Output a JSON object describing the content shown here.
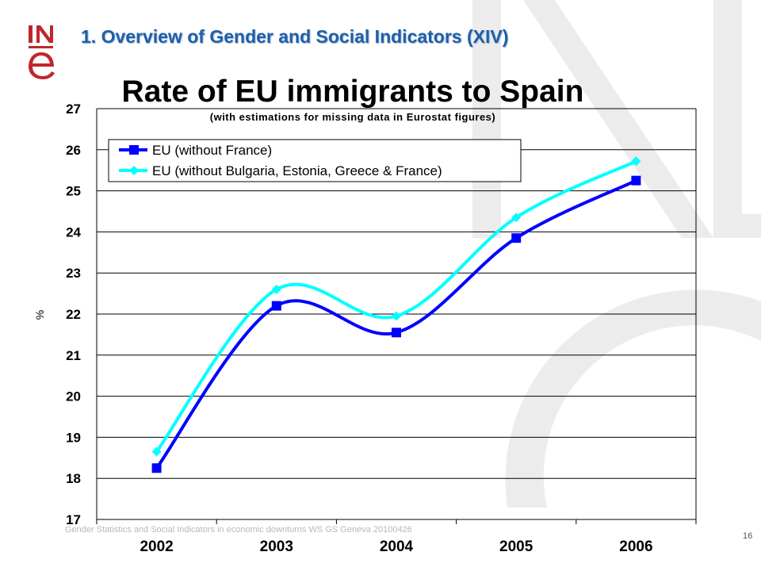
{
  "slide": {
    "title": "1. Overview of Gender and Social Indicators (XIV)",
    "footer": "Gender Statistics and Social Indicators in economic downturns WS GS Geneva 20100426",
    "page_number": "16",
    "logo_text_top": "INE",
    "accent_color": "#1f5fa8",
    "logo_color": "#c0272d"
  },
  "chart_data": {
    "type": "line",
    "title": "Rate of EU immigrants to Spain",
    "subtitle": "(with estimations for missing data in Eurostat figures)",
    "xlabel": "",
    "ylabel": "%",
    "categories": [
      "2002",
      "2003",
      "2004",
      "2005",
      "2006"
    ],
    "ylim": [
      17,
      27
    ],
    "yticks": [
      17,
      18,
      19,
      20,
      21,
      22,
      23,
      24,
      25,
      26,
      27
    ],
    "grid": true,
    "legend_position": "top-left",
    "series": [
      {
        "name": "EU (without France)",
        "values": [
          18.25,
          22.2,
          21.55,
          23.85,
          25.25
        ],
        "color": "#0000ff",
        "marker": "square"
      },
      {
        "name": "EU (without Bulgaria, Estonia, Greece & France)",
        "values": [
          18.65,
          22.6,
          21.95,
          24.35,
          25.72
        ],
        "color": "#00ffff",
        "marker": "diamond"
      }
    ]
  }
}
